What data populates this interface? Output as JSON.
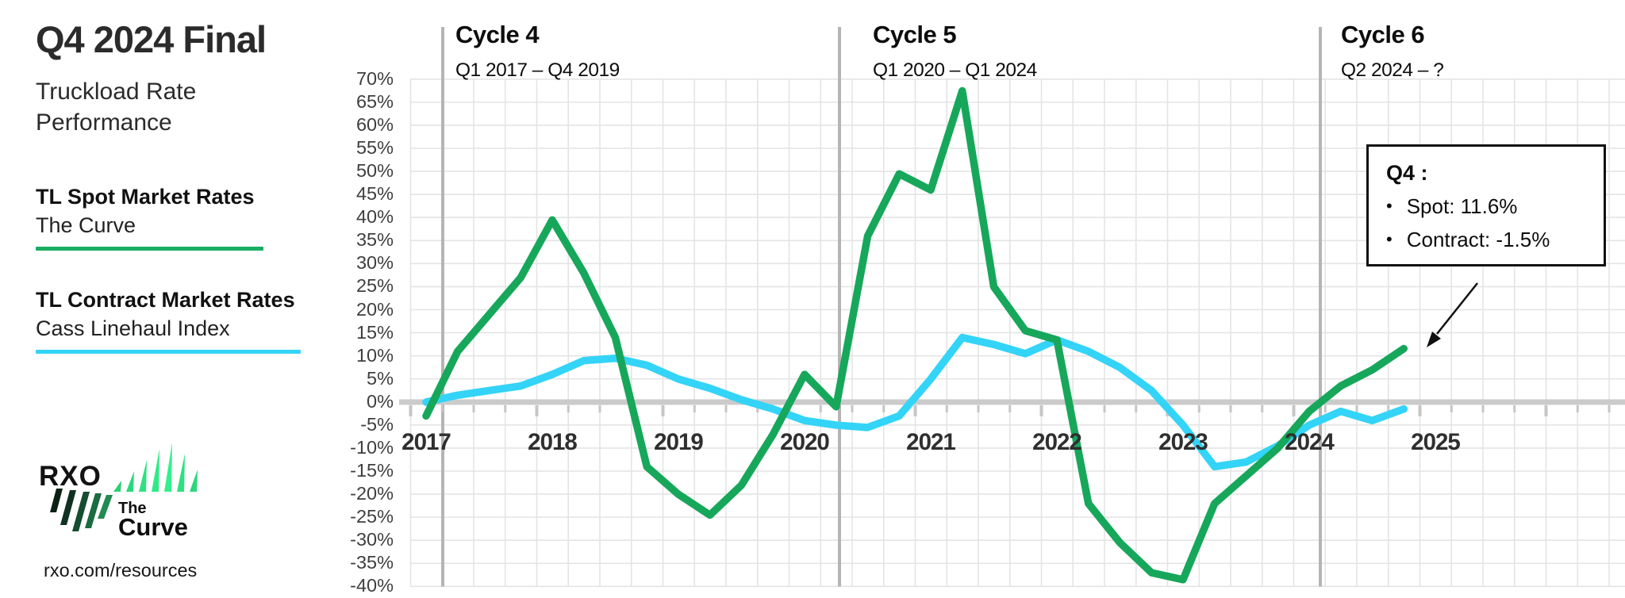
{
  "header": {
    "title": "Q4 2024 Final",
    "subtitle": "Truckload Rate Performance"
  },
  "legend": [
    {
      "label": "TL Spot Market Rates",
      "sublabel": "The Curve",
      "color": "#19ae63"
    },
    {
      "label": "TL Contract Market Rates",
      "sublabel": "Cass Linehaul Index",
      "color": "#33d4f7"
    }
  ],
  "logo": {
    "brand": "RXO",
    "product_line1": "The",
    "product_line2": "Curve"
  },
  "footer": {
    "url": "rxo.com/resources"
  },
  "cycles": [
    {
      "title": "Cycle 4",
      "range": "Q1 2017 – Q4 2019"
    },
    {
      "title": "Cycle 5",
      "range": "Q1 2020 – Q1 2024"
    },
    {
      "title": "Cycle 6",
      "range": "Q2 2024 – ?"
    }
  ],
  "callout": {
    "title": "Q4 :",
    "bullet": "•",
    "items": [
      "Spot: 11.6%",
      "Contract: -1.5%"
    ]
  },
  "chart_data": {
    "type": "line",
    "title": "Truckload Rate Performance",
    "x": [
      "2017 Q1",
      "2017 Q2",
      "2017 Q3",
      "2017 Q4",
      "2018 Q1",
      "2018 Q2",
      "2018 Q3",
      "2018 Q4",
      "2019 Q1",
      "2019 Q2",
      "2019 Q3",
      "2019 Q4",
      "2020 Q1",
      "2020 Q2",
      "2020 Q3",
      "2020 Q4",
      "2021 Q1",
      "2021 Q2",
      "2021 Q3",
      "2021 Q4",
      "2022 Q1",
      "2022 Q2",
      "2022 Q3",
      "2022 Q4",
      "2023 Q1",
      "2023 Q2",
      "2023 Q3",
      "2023 Q4",
      "2024 Q1",
      "2024 Q2",
      "2024 Q3",
      "2024 Q4"
    ],
    "series": [
      {
        "name": "TL Spot Market Rates (The Curve)",
        "color": "#17a75b",
        "values": [
          -3,
          11,
          19,
          27,
          39.5,
          28,
          14,
          -14,
          -20,
          -24.5,
          -18,
          -7,
          6,
          -1,
          36,
          49.5,
          46,
          67.5,
          25,
          15.5,
          13.5,
          -22,
          -30.5,
          -37,
          -38.5,
          -22,
          -16,
          -10,
          -2,
          3.5,
          7,
          11.6
        ]
      },
      {
        "name": "TL Contract Market Rates (Cass Linehaul Index)",
        "color": "#33d4f7",
        "values": [
          0,
          1.5,
          2.5,
          3.5,
          6,
          9,
          9.5,
          8,
          5,
          3,
          0.5,
          -1.5,
          -4,
          -5,
          -5.5,
          -3,
          5,
          14,
          12.5,
          10.5,
          13.5,
          11,
          7.5,
          2.5,
          -5,
          -14,
          -13,
          -9.5,
          -5,
          -2,
          -4,
          -1.5
        ]
      }
    ],
    "ylim": [
      -40,
      70
    ],
    "ytick_step": 5,
    "ytick_labels": [
      "70%",
      "65%",
      "60%",
      "55%",
      "50%",
      "45%",
      "40%",
      "35%",
      "30%",
      "25%",
      "20%",
      "15%",
      "10%",
      "5%",
      "0%",
      "-5%",
      "-10%",
      "-15%",
      "-20%",
      "-25%",
      "-30%",
      "-35%",
      "-40%"
    ],
    "xtick_labels": [
      "2017",
      "2018",
      "2019",
      "2020",
      "2021",
      "2022",
      "2023",
      "2024",
      "2025"
    ],
    "grid": true,
    "legend_position": "left",
    "annotation_values": {
      "q4_spot": "11.6%",
      "q4_contract": "-1.5%"
    }
  }
}
